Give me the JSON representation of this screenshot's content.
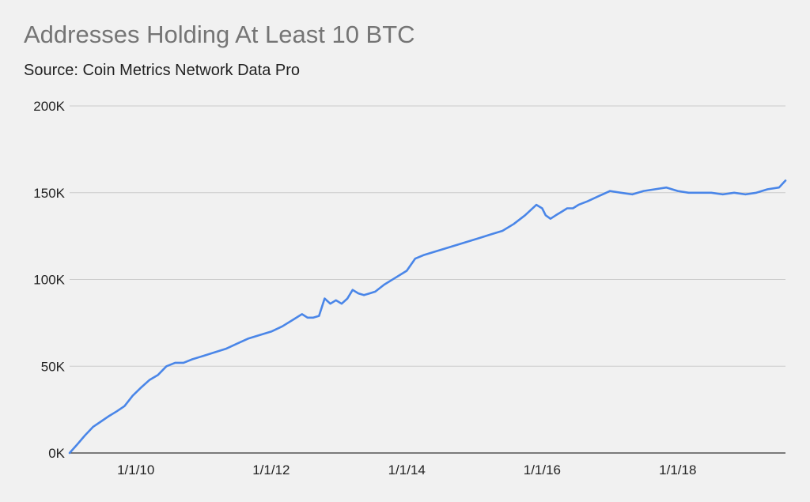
{
  "chart_data": {
    "type": "line",
    "title": "Addresses Holding At Least 10 BTC",
    "subtitle": "Source: Coin Metrics Network Data Pro",
    "xlabel": "",
    "ylabel": "",
    "ylim": [
      0,
      200000
    ],
    "y_ticks": [
      0,
      50000,
      100000,
      150000,
      200000
    ],
    "y_tick_labels": [
      "0K",
      "50K",
      "100K",
      "150K",
      "200K"
    ],
    "x_ticks": [
      "2010-01-01",
      "2012-01-01",
      "2014-01-01",
      "2016-01-01",
      "2018-01-01"
    ],
    "x_tick_labels": [
      "1/1/10",
      "1/1/12",
      "1/1/14",
      "1/1/16",
      "1/1/18"
    ],
    "xlim": [
      "2009-01-09",
      "2019-08-05"
    ],
    "grid": true,
    "legend": "none",
    "colors": {
      "line": "#4a86e8",
      "grid": "#cccccc",
      "background": "#f1f1f1"
    },
    "series": [
      {
        "x": [
          "2009-01-09",
          "2009-02-20",
          "2009-04-01",
          "2009-05-15",
          "2009-06-25",
          "2009-08-05",
          "2009-09-20",
          "2009-11-01",
          "2009-12-15",
          "2010-02-01",
          "2010-03-15",
          "2010-05-01",
          "2010-06-15",
          "2010-08-01",
          "2010-09-15",
          "2010-11-01",
          "2011-01-01",
          "2011-03-01",
          "2011-05-01",
          "2011-07-01",
          "2011-09-01",
          "2011-11-01",
          "2012-01-01",
          "2012-03-01",
          "2012-05-01",
          "2012-06-15",
          "2012-07-15",
          "2012-08-15",
          "2012-09-15",
          "2012-10-15",
          "2012-11-15",
          "2012-12-15",
          "2013-01-15",
          "2013-02-15",
          "2013-03-15",
          "2013-04-15",
          "2013-05-15",
          "2013-06-15",
          "2013-07-15",
          "2013-09-01",
          "2013-11-01",
          "2014-01-01",
          "2014-02-15",
          "2014-04-01",
          "2014-06-01",
          "2014-08-01",
          "2014-10-01",
          "2014-12-01",
          "2015-02-01",
          "2015-04-01",
          "2015-06-01",
          "2015-08-01",
          "2015-10-01",
          "2015-12-01",
          "2016-01-01",
          "2016-01-20",
          "2016-02-15",
          "2016-03-15",
          "2016-04-15",
          "2016-05-15",
          "2016-06-15",
          "2016-07-15",
          "2016-09-01",
          "2016-11-01",
          "2017-01-01",
          "2017-03-01",
          "2017-05-01",
          "2017-07-01",
          "2017-09-01",
          "2017-11-01",
          "2018-01-01",
          "2018-03-01",
          "2018-05-01",
          "2018-07-01",
          "2018-09-01",
          "2018-11-01",
          "2019-01-01",
          "2019-03-01",
          "2019-05-01",
          "2019-07-01",
          "2019-08-05"
        ],
        "values": [
          0,
          5000,
          10000,
          15000,
          18000,
          21000,
          24000,
          27000,
          33000,
          38000,
          42000,
          45000,
          50000,
          52000,
          52000,
          54000,
          56000,
          58000,
          60000,
          63000,
          66000,
          68000,
          70000,
          73000,
          77000,
          80000,
          78000,
          78000,
          79000,
          89000,
          86000,
          88000,
          86000,
          89000,
          94000,
          92000,
          91000,
          92000,
          93000,
          97000,
          101000,
          105000,
          112000,
          114000,
          116000,
          118000,
          120000,
          122000,
          124000,
          126000,
          128000,
          132000,
          137000,
          143000,
          141000,
          137000,
          135000,
          137000,
          139000,
          141000,
          141000,
          143000,
          145000,
          148000,
          151000,
          150000,
          149000,
          151000,
          152000,
          153000,
          151000,
          150000,
          150000,
          150000,
          149000,
          150000,
          149000,
          150000,
          152000,
          153000,
          157000
        ]
      }
    ]
  }
}
